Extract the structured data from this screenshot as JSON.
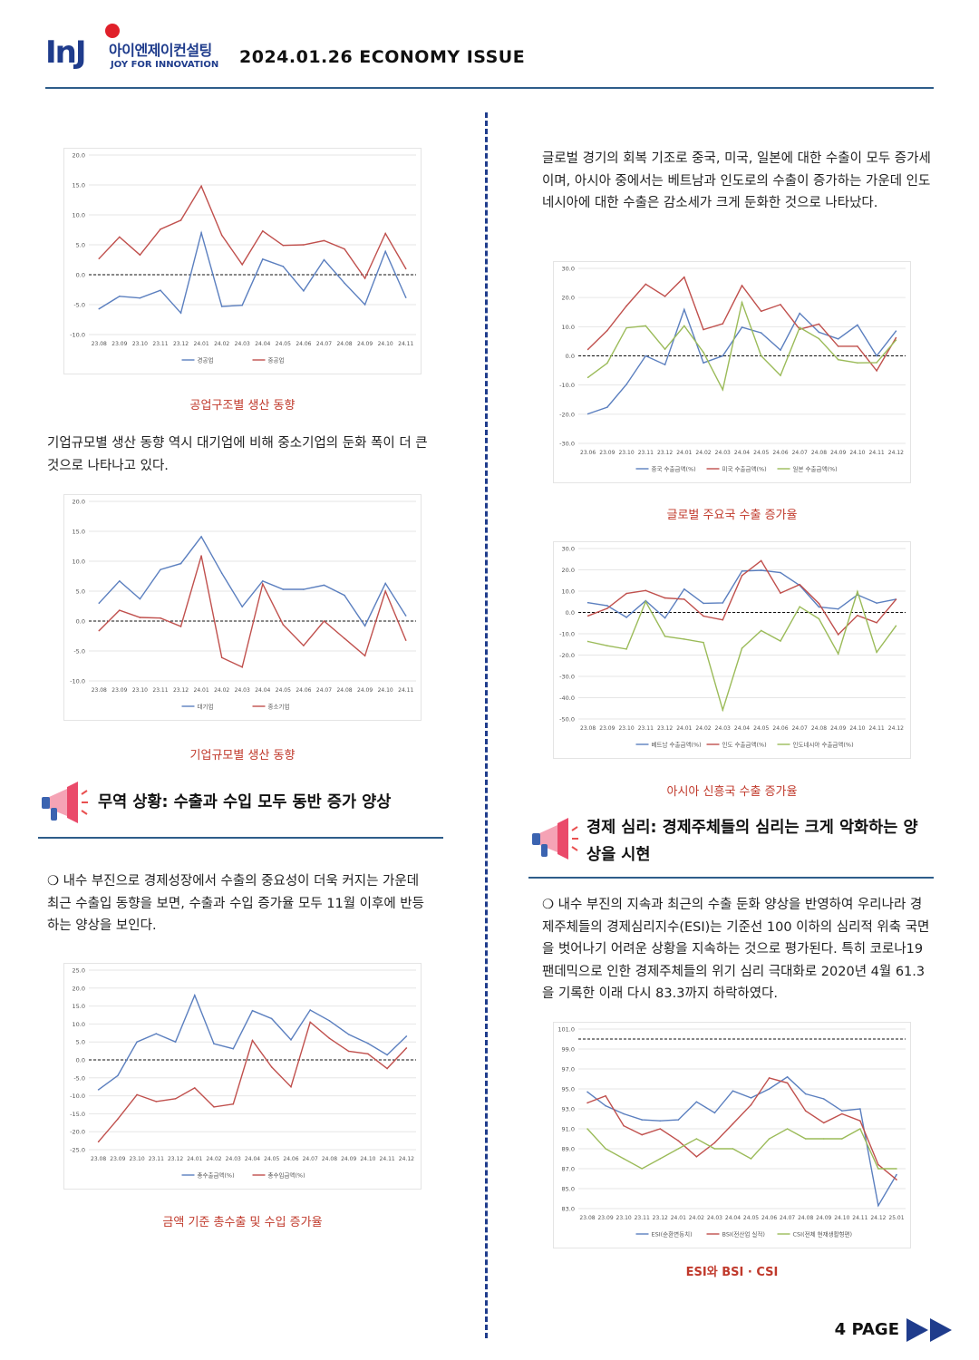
{
  "header": {
    "logo_korean": "아이엔제이컨설팅",
    "logo_english": "JOY FOR INNOVATION",
    "logo_mark": "InJ",
    "title": "2024.01.26 ECONOMY ISSUE"
  },
  "colors": {
    "navy": "#1f3c8c",
    "rule": "#2e5d8a",
    "caption_red": "#c0392b",
    "series_blue": "#5b7fbf",
    "series_red": "#c0504d",
    "series_green": "#9bbb59"
  },
  "left": {
    "caption1": "공업구조별 생산 동향",
    "para1": "기업규모별 생산 동향 역시 대기업에 비해 중소기업의 둔화 폭이 더 큰 것으로 나타나고 있다.",
    "caption2": "기업규모별 생산 동향",
    "section1_title": "무역 상황: 수출과 수입 모두 동반 증가 양상",
    "para2": "❍ 내수 부진으로 경제성장에서 수출의 중요성이 더욱 커지는 가운데 최근 수출입 동향을 보면, 수출과 수입 증가율 모두 11월 이후에 반등하는 양상을 보인다.",
    "caption3": "금액 기준 총수출 및 수입 증가율"
  },
  "right": {
    "para1": "글로벌 경기의 회복 기조로 중국, 미국, 일본에 대한 수출이 모두 증가세이며, 아시아 중에서는 베트남과 인도로의 수출이 증가하는 가운데 인도네시아에 대한 수출은 감소세가 크게 둔화한 것으로 나타났다.",
    "caption4": "글로벌 주요국 수출 증가율",
    "caption5": "아시아 신흥국 수출 증가율",
    "section2_title": "경제 심리: 경제주체들의 심리는 크게 악화하는 양상을 시현",
    "para2": "❍ 내수 부진의 지속과 최근의 수출 둔화 양상을 반영하여 우리나라 경제주체들의 경제심리지수(ESI)는 기준선 100 이하의 심리적 위축 국면을 벗어나기 어려운 상황을 지속하는 것으로 평가된다. 특히 코로나19 팬데믹으로 인한 경제주체들의 위기 심리 극대화로 2020년 4월 61.3을 기록한 이래 다시 83.3까지 하락하였다.",
    "caption6": "ESI와 BSI · CSI"
  },
  "footer": {
    "page": "4 PAGE"
  },
  "chart_data": [
    {
      "type": "line",
      "categories": [
        "23.08",
        "23.09",
        "23.10",
        "23.11",
        "23.12",
        "24.01",
        "24.02",
        "24.03",
        "24.04",
        "24.05",
        "24.06",
        "24.07",
        "24.08",
        "24.09",
        "24.10",
        "24.11"
      ],
      "series": [
        {
          "name": "경공업",
          "values": [
            -5.7,
            -3.6,
            -3.9,
            -2.6,
            -6.4,
            7.0,
            -5.3,
            -5.1,
            2.6,
            1.4,
            -2.7,
            2.5,
            -1.4,
            -5.0,
            3.9,
            -3.8
          ]
        },
        {
          "name": "중공업",
          "values": [
            2.7,
            6.3,
            3.3,
            7.6,
            9.1,
            14.8,
            6.6,
            1.7,
            7.3,
            4.9,
            5.0,
            5.7,
            4.3,
            -0.6,
            6.9,
            1.0
          ]
        }
      ],
      "ylim": [
        -10,
        20
      ],
      "yticks": [
        -10,
        -5,
        0,
        5,
        10,
        15,
        20
      ],
      "reference_line": 0
    },
    {
      "type": "line",
      "categories": [
        "23.08",
        "23.09",
        "23.10",
        "23.11",
        "23.12",
        "24.01",
        "24.02",
        "24.03",
        "24.04",
        "24.05",
        "24.06",
        "24.07",
        "24.08",
        "24.09",
        "24.10",
        "24.11"
      ],
      "series": [
        {
          "name": "대기업",
          "values": [
            3.0,
            6.7,
            3.7,
            8.6,
            9.6,
            14.1,
            8.0,
            2.4,
            6.7,
            5.3,
            5.3,
            6.0,
            4.3,
            -0.8,
            6.3,
            0.9
          ]
        },
        {
          "name": "중소기업",
          "values": [
            -1.6,
            1.8,
            0.6,
            0.5,
            -0.9,
            10.9,
            -6.1,
            -7.7,
            6.2,
            -0.6,
            -4.1,
            0.0,
            -2.9,
            -5.8,
            5.0,
            -3.2
          ]
        }
      ],
      "ylim": [
        -10,
        20
      ],
      "yticks": [
        -10,
        -5,
        0,
        5,
        10,
        15,
        20
      ],
      "reference_line": 0
    },
    {
      "type": "line",
      "categories": [
        "23.08",
        "23.09",
        "23.10",
        "23.11",
        "23.12",
        "24.01",
        "24.02",
        "24.03",
        "24.04",
        "24.05",
        "24.06",
        "24.07",
        "24.08",
        "24.09",
        "24.10",
        "24.11",
        "24.12"
      ],
      "series": [
        {
          "name": "총수출금액(%)",
          "values": [
            -8.3,
            -4.4,
            5.0,
            7.3,
            5.0,
            18.0,
            4.5,
            3.1,
            13.7,
            11.5,
            5.6,
            13.9,
            10.9,
            7.1,
            4.6,
            1.4,
            6.6
          ]
        },
        {
          "name": "총수입금액(%)",
          "values": [
            -22.8,
            -16.5,
            -9.7,
            -11.6,
            -10.8,
            -7.8,
            -13.1,
            -12.3,
            5.4,
            -2.0,
            -7.5,
            10.5,
            6.0,
            2.4,
            1.7,
            -2.4,
            3.3
          ]
        }
      ],
      "ylim": [
        -25,
        25
      ],
      "yticks": [
        -25,
        -20,
        -15,
        -10,
        -5,
        0,
        5,
        10,
        15,
        20,
        25
      ],
      "reference_line": 0
    },
    {
      "type": "line",
      "categories": [
        "23.06",
        "23.09",
        "23.10",
        "23.11",
        "23.12",
        "24.01",
        "24.02",
        "24.03",
        "24.04",
        "24.05",
        "24.06",
        "24.07",
        "24.08",
        "24.09",
        "24.10",
        "24.11",
        "24.12"
      ],
      "series": [
        {
          "name": "중국 수출금액(%)",
          "values": [
            -19.9,
            -17.6,
            -9.8,
            0.0,
            -3.0,
            15.9,
            -2.4,
            0.0,
            9.8,
            7.9,
            2.0,
            14.6,
            8.1,
            5.8,
            10.6,
            0.0,
            8.5
          ]
        },
        {
          "name": "미국 수출금액(%)",
          "values": [
            2.2,
            8.7,
            17.1,
            24.6,
            20.4,
            27.0,
            9.0,
            11.0,
            24.1,
            15.3,
            17.6,
            9.1,
            10.9,
            3.3,
            3.3,
            -5.1,
            6.2
          ]
        },
        {
          "name": "일본 수출금액(%)",
          "values": [
            -7.4,
            -2.5,
            9.6,
            10.3,
            2.3,
            10.3,
            1.2,
            -11.6,
            18.3,
            0.0,
            -6.7,
            9.7,
            5.9,
            -1.3,
            -2.4,
            -2.3,
            5.4
          ]
        }
      ],
      "ylim": [
        -30,
        30
      ],
      "yticks": [
        -30,
        -20,
        -10,
        0,
        10,
        20,
        30
      ],
      "reference_line": 0
    },
    {
      "type": "line",
      "categories": [
        "23.08",
        "23.09",
        "23.10",
        "23.11",
        "23.12",
        "24.01",
        "24.02",
        "24.03",
        "24.04",
        "24.05",
        "24.06",
        "24.07",
        "24.08",
        "24.09",
        "24.10",
        "24.11",
        "24.12"
      ],
      "series": [
        {
          "name": "베트남 수출금액(%)",
          "values": [
            4.6,
            3.2,
            -2.3,
            5.5,
            -2.6,
            11.0,
            4.3,
            4.5,
            19.4,
            19.8,
            18.7,
            12.7,
            2.6,
            1.6,
            8.3,
            4.4,
            6.2
          ]
        },
        {
          "name": "인도 수출금액(%)",
          "values": [
            -1.6,
            1.9,
            8.9,
            10.3,
            6.8,
            6.2,
            -1.7,
            -3.5,
            17.3,
            24.3,
            9.1,
            13.1,
            4.2,
            -10.4,
            -1.4,
            -4.8,
            6.1
          ]
        },
        {
          "name": "인도네시아 수출금액(%)",
          "values": [
            -13.6,
            -15.6,
            -17.2,
            5.1,
            -11.2,
            -12.5,
            -14.1,
            -45.8,
            -16.8,
            -8.5,
            -13.4,
            2.7,
            -3.0,
            -19.4,
            9.8,
            -18.7,
            -6.3
          ]
        }
      ],
      "ylim": [
        -50,
        30
      ],
      "yticks": [
        -50,
        -40,
        -30,
        -20,
        -10,
        0,
        10,
        20,
        30
      ],
      "reference_line": 0
    },
    {
      "type": "line",
      "categories": [
        "23.08",
        "23.09",
        "23.10",
        "23.11",
        "23.12",
        "24.01",
        "24.02",
        "24.03",
        "24.04",
        "24.05",
        "24.06",
        "24.07",
        "24.08",
        "24.09",
        "24.10",
        "24.11",
        "24.12",
        "25.01"
      ],
      "series": [
        {
          "name": "ESI(순환변동치)",
          "values": [
            94.7,
            93.3,
            92.5,
            91.9,
            91.8,
            91.9,
            93.7,
            92.6,
            94.8,
            94.1,
            95.0,
            96.2,
            94.5,
            94.0,
            92.8,
            93.0,
            83.3,
            86.4
          ]
        },
        {
          "name": "BSI(전산업 실적)",
          "values": [
            93.6,
            94.3,
            91.3,
            90.4,
            91.0,
            89.8,
            88.2,
            89.6,
            91.5,
            93.4,
            96.1,
            95.6,
            92.8,
            91.6,
            92.5,
            91.8,
            87.4,
            85.9
          ]
        },
        {
          "name": "CSI(전체 현재생활형편)",
          "values": [
            91.0,
            89.0,
            88.0,
            87.0,
            88.0,
            89.0,
            90.0,
            89.0,
            89.0,
            88.0,
            90.0,
            91.0,
            90.0,
            90.0,
            90.0,
            91.0,
            87.0,
            87.0
          ]
        }
      ],
      "ylim": [
        83,
        101
      ],
      "yticks": [
        83,
        85,
        87,
        89,
        91,
        93,
        95,
        97,
        99,
        101
      ],
      "reference_line": 100
    }
  ]
}
